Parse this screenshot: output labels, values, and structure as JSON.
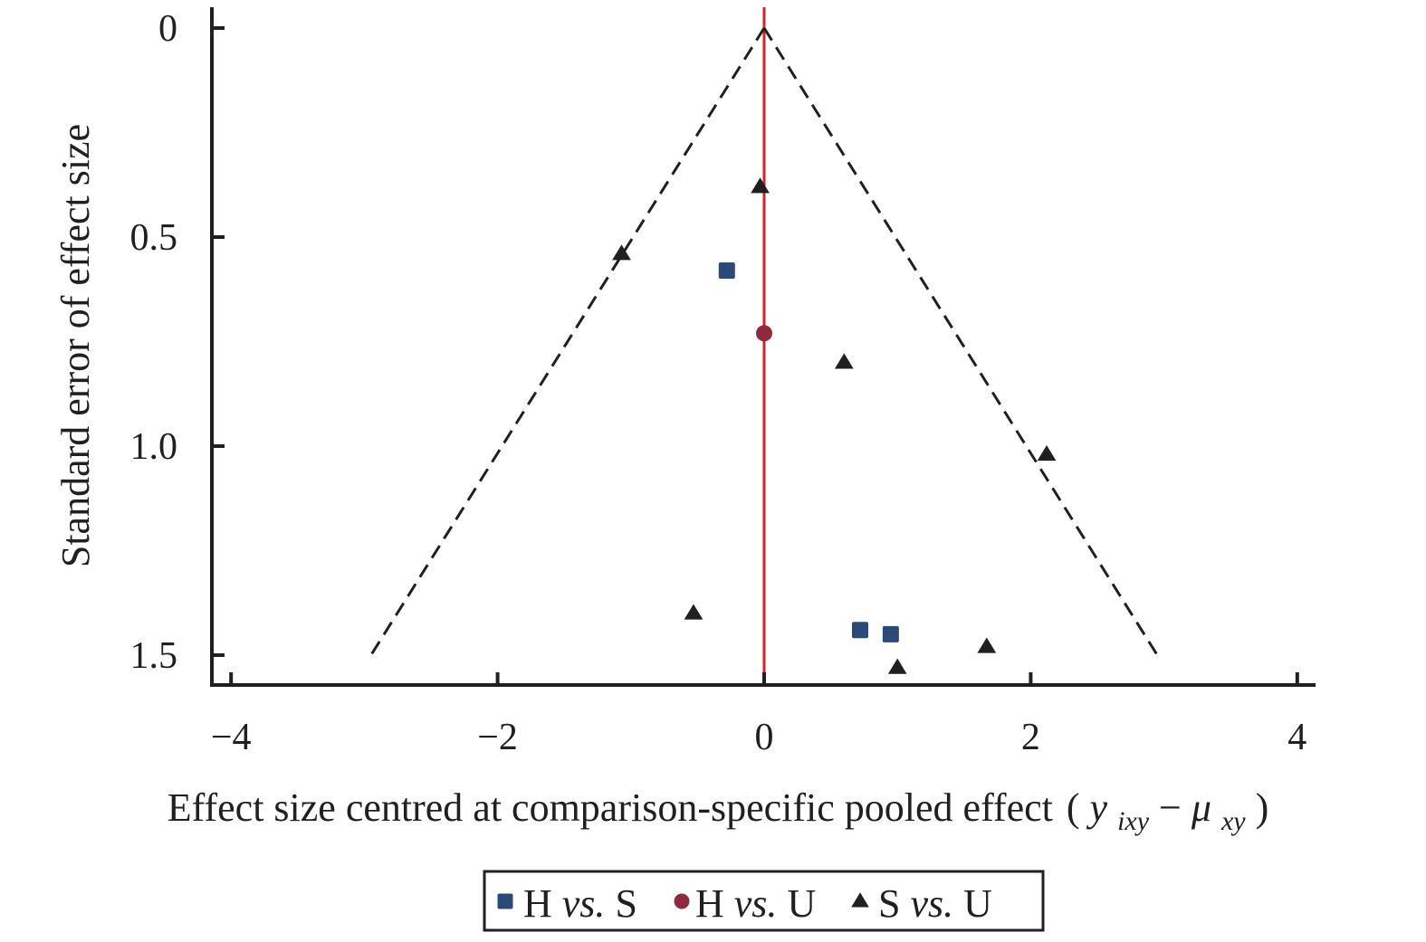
{
  "chart_data": {
    "type": "scatter",
    "subtype": "funnel",
    "xlabel": {
      "main": "Effect size centred at comparison-specific pooled effect",
      "open": "(",
      "y": "y",
      "y_sub": "ixy",
      "minus": "−",
      "mu": "μ",
      "mu_sub": "xy",
      "close": ")"
    },
    "ylabel": "Standard error of effect size",
    "xlim": [
      -4.15,
      4.15
    ],
    "ylim": [
      0,
      1.57
    ],
    "y_inverted": true,
    "xticks": [
      -4,
      -2,
      0,
      2,
      4
    ],
    "xtick_labels": [
      "−4",
      "−2",
      "0",
      "2",
      "4"
    ],
    "yticks": [
      0,
      0.5,
      1.0,
      1.5
    ],
    "ytick_labels": [
      "0",
      "0.5",
      "1.0",
      "1.5"
    ],
    "reference_line": {
      "x": 0,
      "color": "#d2232a"
    },
    "funnel": {
      "apex": [
        0,
        0
      ],
      "left_end": [
        -2.95,
        1.5
      ],
      "right_end": [
        2.95,
        1.5
      ],
      "color": "#231f20"
    },
    "legend_position": "bottom",
    "series": [
      {
        "name_parts": [
          "H ",
          "vs.",
          " S"
        ],
        "marker": "square",
        "color": "#2b4a7a",
        "points": [
          [
            -0.28,
            0.58
          ],
          [
            0.72,
            1.44
          ],
          [
            0.95,
            1.45
          ]
        ]
      },
      {
        "name_parts": [
          "H ",
          "vs.",
          " U"
        ],
        "marker": "circle",
        "color": "#8e2a3e",
        "points": [
          [
            0.0,
            0.73
          ]
        ]
      },
      {
        "name_parts": [
          "S ",
          "vs.",
          " U"
        ],
        "marker": "triangle",
        "color": "#231f20",
        "points": [
          [
            -0.03,
            0.38
          ],
          [
            -1.07,
            0.54
          ],
          [
            0.6,
            0.8
          ],
          [
            2.12,
            1.02
          ],
          [
            -0.53,
            1.4
          ],
          [
            1.67,
            1.48
          ],
          [
            1.0,
            1.53
          ]
        ]
      }
    ]
  }
}
